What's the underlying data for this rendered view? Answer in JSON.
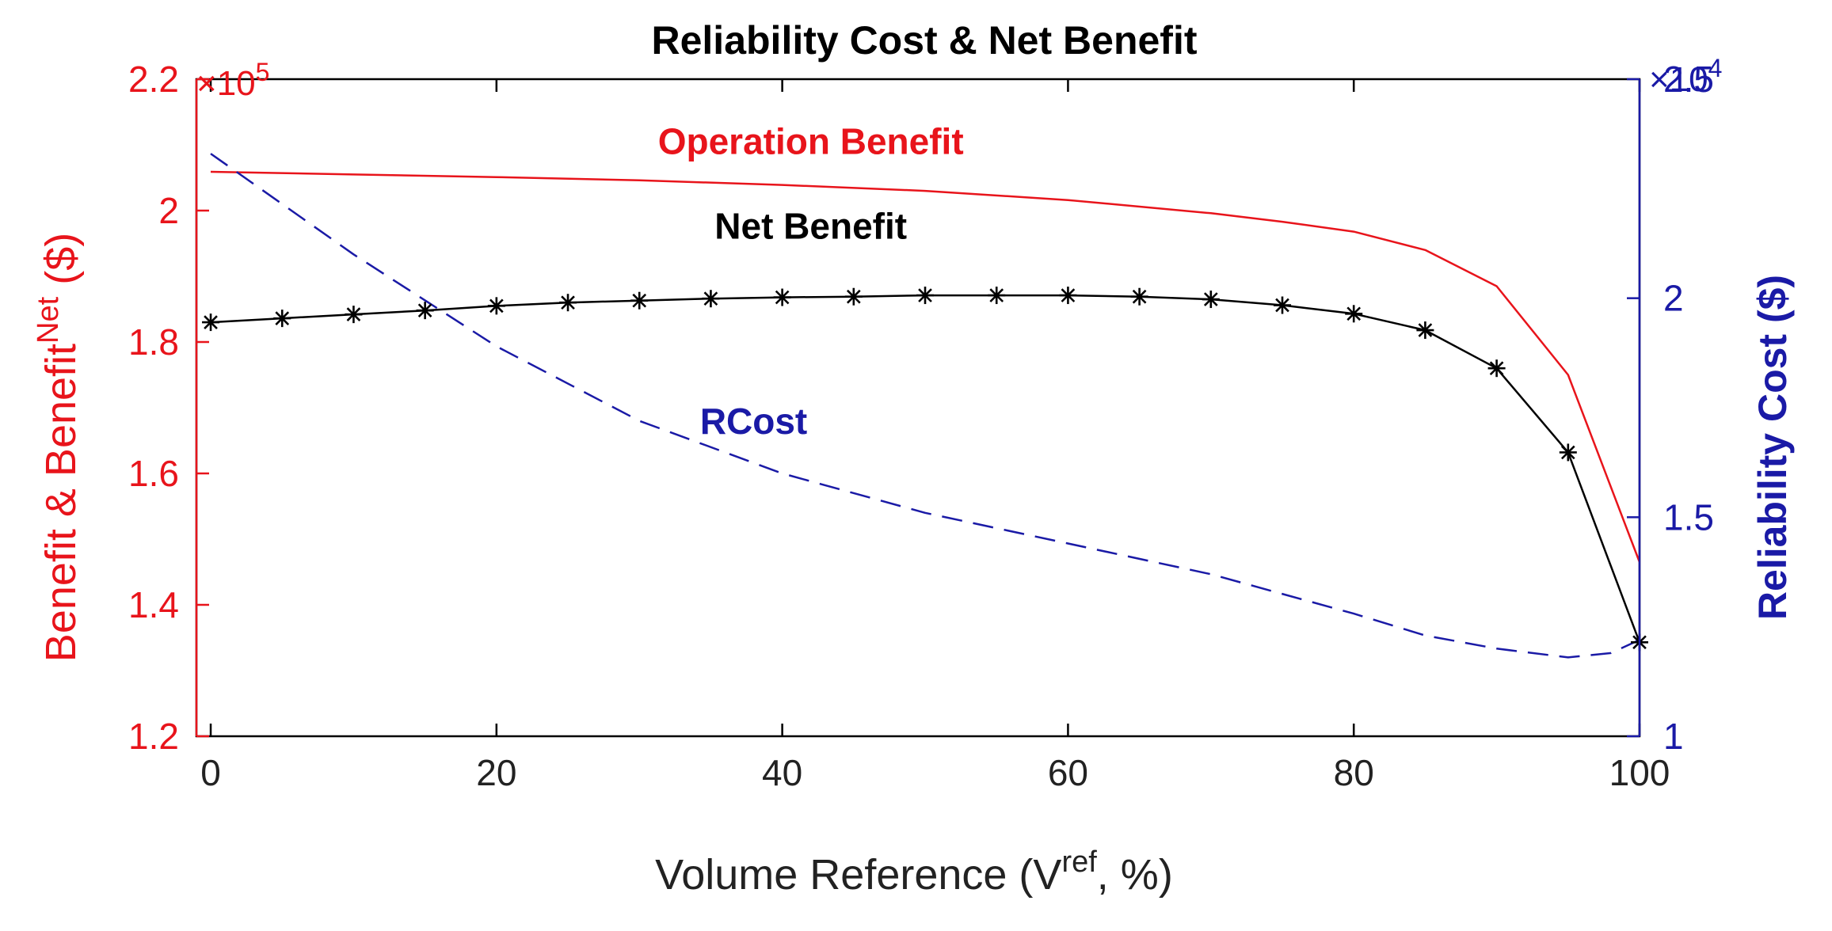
{
  "chart_data": {
    "type": "line",
    "title": "Reliability Cost & Net Benefit",
    "xlabel": "Volume Reference (V",
    "xlabel_sup": "ref",
    "xlabel_tail": ", %)",
    "ylabel_left": "Benefit & Benefit",
    "ylabel_left_sup": "Net",
    "ylabel_left_tail": " ($)",
    "ylabel_right": "Reliability Cost ($)",
    "left_exponent": "×10",
    "left_exponent_power": "5",
    "right_exponent": "×10",
    "right_exponent_power": "4",
    "xlim": [
      -1,
      100
    ],
    "ylim_left": [
      1.2,
      2.2
    ],
    "ylim_right": [
      1.0,
      2.5
    ],
    "x_ticks": [
      0,
      20,
      40,
      60,
      80,
      100
    ],
    "x_tick_labels": [
      "0",
      "20",
      "40",
      "60",
      "80",
      "100"
    ],
    "y_left_ticks": [
      1.2,
      1.4,
      1.6,
      1.8,
      2.0,
      2.2
    ],
    "y_left_tick_labels": [
      "1.2",
      "1.4",
      "1.6",
      "1.8",
      "2",
      "2.2"
    ],
    "y_right_ticks": [
      1.0,
      1.5,
      2.0,
      2.5
    ],
    "y_right_tick_labels": [
      "1",
      "1.5",
      "2",
      "2.5"
    ],
    "colors": {
      "left_axis": "#e8141b",
      "right_axis": "#1a1aa6",
      "net": "#000000",
      "frame": "#000000"
    },
    "series": [
      {
        "name": "Operation Benefit",
        "axis": "left",
        "style": "solid",
        "color": "#e8141b",
        "marker": "none",
        "x": [
          0,
          10,
          20,
          30,
          40,
          50,
          60,
          70,
          75,
          80,
          85,
          90,
          95,
          100
        ],
        "y": [
          2.059,
          2.055,
          2.051,
          2.046,
          2.039,
          2.03,
          2.016,
          1.996,
          1.983,
          1.968,
          1.94,
          1.885,
          1.75,
          1.465
        ]
      },
      {
        "name": "Net Benefit",
        "axis": "left",
        "style": "solid",
        "color": "#000000",
        "marker": "asterisk",
        "x": [
          0,
          5,
          10,
          15,
          20,
          25,
          30,
          35,
          40,
          45,
          50,
          55,
          60,
          65,
          70,
          75,
          80,
          85,
          90,
          95,
          100
        ],
        "y": [
          1.83,
          1.836,
          1.842,
          1.848,
          1.855,
          1.86,
          1.863,
          1.866,
          1.868,
          1.869,
          1.871,
          1.871,
          1.871,
          1.869,
          1.865,
          1.856,
          1.843,
          1.818,
          1.76,
          1.632,
          1.343
        ]
      },
      {
        "name": "RCost",
        "axis": "right",
        "style": "dashed",
        "color": "#1a1aa6",
        "marker": "none",
        "x": [
          0,
          10,
          20,
          30,
          40,
          50,
          60,
          70,
          80,
          85,
          90,
          95,
          98,
          100
        ],
        "y": [
          2.33,
          2.1,
          1.89,
          1.72,
          1.6,
          1.51,
          1.44,
          1.37,
          1.28,
          1.23,
          1.2,
          1.18,
          1.19,
          1.22
        ]
      }
    ],
    "annotations": [
      {
        "text": "Operation Benefit",
        "color": "#e8141b",
        "x": 42,
        "y": 2.086,
        "axis": "left"
      },
      {
        "text": "Net Benefit",
        "color": "#000000",
        "x": 42,
        "y": 1.957,
        "axis": "left"
      },
      {
        "text": "RCost",
        "color": "#1a1aa6",
        "x": 38,
        "y": 1.66,
        "axis": "left"
      }
    ]
  }
}
